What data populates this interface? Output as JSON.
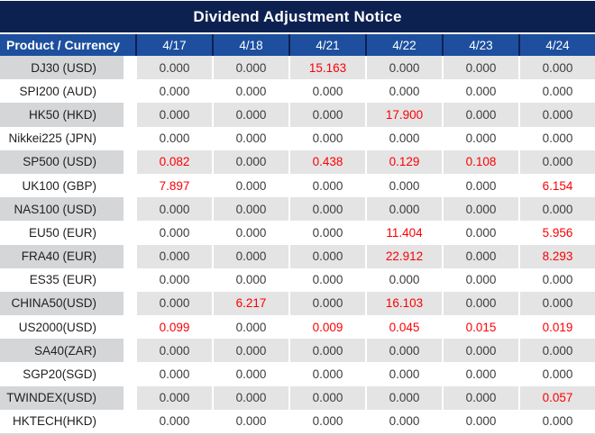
{
  "title": "Dividend Adjustment Notice",
  "colors": {
    "title_bar_bg": "#0d2151",
    "header_bg": "#1d4f9e",
    "stripe_label_bg": "#d5d6d8",
    "stripe_value_bg": "#e4e4e4",
    "negative_adjustment_red": "#fb0005",
    "text_dark": "#3c3c3c"
  },
  "table": {
    "header": {
      "product_label": "Product / Currency",
      "dates": [
        "4/17",
        "4/18",
        "4/21",
        "4/22",
        "4/23",
        "4/24"
      ]
    },
    "zero_value": "0.000",
    "rows": [
      {
        "product": "DJ30 (USD)",
        "values": [
          "0.000",
          "0.000",
          "15.163",
          "0.000",
          "0.000",
          "0.000"
        ]
      },
      {
        "product": "SPI200 (AUD)",
        "values": [
          "0.000",
          "0.000",
          "0.000",
          "0.000",
          "0.000",
          "0.000"
        ]
      },
      {
        "product": "HK50 (HKD)",
        "values": [
          "0.000",
          "0.000",
          "0.000",
          "17.900",
          "0.000",
          "0.000"
        ]
      },
      {
        "product": "Nikkei225 (JPN)",
        "values": [
          "0.000",
          "0.000",
          "0.000",
          "0.000",
          "0.000",
          "0.000"
        ]
      },
      {
        "product": "SP500 (USD)",
        "values": [
          "0.082",
          "0.000",
          "0.438",
          "0.129",
          "0.108",
          "0.000"
        ]
      },
      {
        "product": "UK100 (GBP)",
        "values": [
          "7.897",
          "0.000",
          "0.000",
          "0.000",
          "0.000",
          "6.154"
        ]
      },
      {
        "product": "NAS100 (USD)",
        "values": [
          "0.000",
          "0.000",
          "0.000",
          "0.000",
          "0.000",
          "0.000"
        ]
      },
      {
        "product": "EU50 (EUR)",
        "values": [
          "0.000",
          "0.000",
          "0.000",
          "11.404",
          "0.000",
          "5.956"
        ]
      },
      {
        "product": "FRA40 (EUR)",
        "values": [
          "0.000",
          "0.000",
          "0.000",
          "22.912",
          "0.000",
          "8.293"
        ]
      },
      {
        "product": "ES35 (EUR)",
        "values": [
          "0.000",
          "0.000",
          "0.000",
          "0.000",
          "0.000",
          "0.000"
        ]
      },
      {
        "product": "CHINA50(USD)",
        "values": [
          "0.000",
          "6.217",
          "0.000",
          "16.103",
          "0.000",
          "0.000"
        ]
      },
      {
        "product": "US2000(USD)",
        "values": [
          "0.099",
          "0.000",
          "0.009",
          "0.045",
          "0.015",
          "0.019"
        ]
      },
      {
        "product": "SA40(ZAR)",
        "values": [
          "0.000",
          "0.000",
          "0.000",
          "0.000",
          "0.000",
          "0.000"
        ]
      },
      {
        "product": "SGP20(SGD)",
        "values": [
          "0.000",
          "0.000",
          "0.000",
          "0.000",
          "0.000",
          "0.000"
        ]
      },
      {
        "product": "TWINDEX(USD)",
        "values": [
          "0.000",
          "0.000",
          "0.000",
          "0.000",
          "0.000",
          "0.057"
        ]
      },
      {
        "product": "HKTECH(HKD)",
        "values": [
          "0.000",
          "0.000",
          "0.000",
          "0.000",
          "0.000",
          "0.000"
        ]
      }
    ]
  }
}
